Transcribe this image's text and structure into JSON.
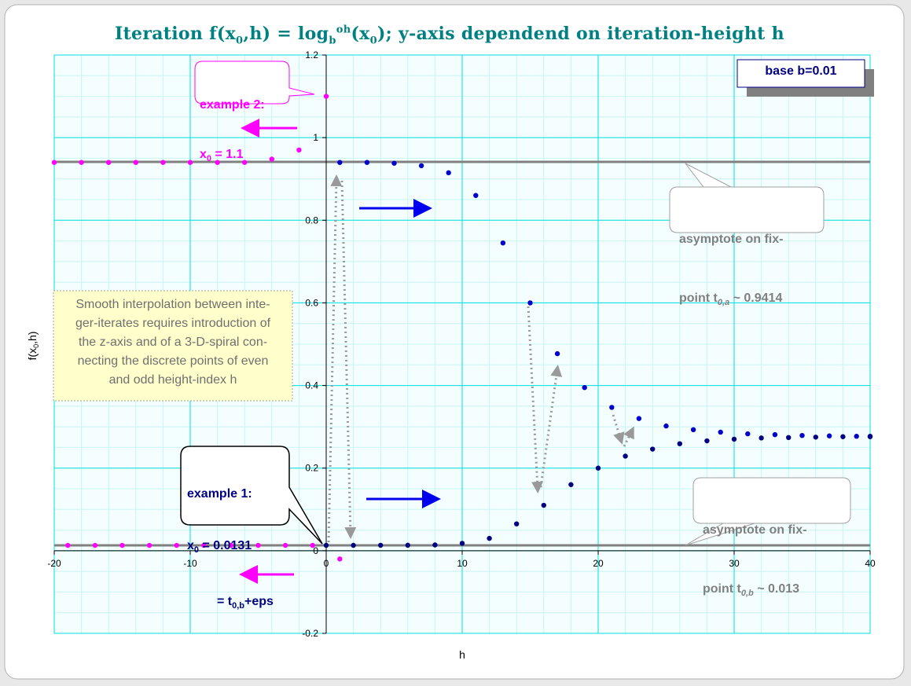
{
  "title": {
    "prefix": "Iteration  f(x",
    "sub0": "0",
    "mid": ",h) = log",
    "subb": "b",
    "sup": "oh",
    "mid2": "(x",
    "sub0b": "0",
    "suffix": "); y-axis dependend on iteration-height h"
  },
  "base_label": "base  b=0.01",
  "ylabel": "f(x0,h)",
  "xlabel": "h",
  "example2": {
    "line1": "example 2:",
    "line2_pre": "x",
    "line2_sub": "0",
    "line2_post": " = 1.1"
  },
  "example1": {
    "line1": "example 1:",
    "line2_pre": "x",
    "line2_sub": "0",
    "line2_post": " = 0.0131",
    "line3_pre": "= t",
    "line3_sub": "0,b",
    "line3_post": "+eps"
  },
  "asym_a": {
    "line1": "asymptote on fix-",
    "line2_pre": "point t",
    "line2_sub": "0,a",
    "line2_post": " ~ 0.9414"
  },
  "asym_b": {
    "line1": "asymptote on fix-",
    "line2_pre": "point t",
    "line2_sub": "0,b",
    "line2_post": " ~ 0.013"
  },
  "note": "Smooth interpolation between inte-\nger-iterates requires introduction of\nthe z-axis and of a 3-D-spiral con-\nnecting the discrete points of even\nand odd height-index h",
  "colors": {
    "magenta": "#ff00ff",
    "blue": "#0000cc",
    "navy": "#000080",
    "title": "#008080",
    "grid": "#00e0e0",
    "minorgrid": "#c8f4f4",
    "asymptote": "#808080",
    "plot_bg": "#f2fefe"
  },
  "chart_data": {
    "type": "scatter",
    "xlim": [
      -20,
      40
    ],
    "ylim": [
      -0.2,
      1.2
    ],
    "x_ticks": [
      -20,
      -10,
      0,
      10,
      20,
      30,
      40
    ],
    "y_ticks": [
      -0.2,
      0,
      0.2,
      0.4,
      0.6,
      0.8,
      1,
      1.2
    ],
    "asymptotes": [
      0.9414,
      0.013
    ],
    "series": [
      {
        "color": "#ff00ff",
        "points": [
          [
            -20,
            0.94
          ],
          [
            -18,
            0.94
          ],
          [
            -16,
            0.94
          ],
          [
            -14,
            0.94
          ],
          [
            -12,
            0.94
          ],
          [
            -10,
            0.94
          ],
          [
            -8,
            0.94
          ],
          [
            -6,
            0.94
          ],
          [
            -4,
            0.948
          ],
          [
            -2,
            0.97
          ],
          [
            0,
            1.1
          ],
          [
            1,
            -0.02
          ]
        ]
      },
      {
        "color": "#0000cc",
        "points": [
          [
            1,
            0.94
          ],
          [
            3,
            0.94
          ],
          [
            5,
            0.938
          ],
          [
            7,
            0.932
          ],
          [
            9,
            0.915
          ],
          [
            11,
            0.86
          ],
          [
            13,
            0.745
          ],
          [
            15,
            0.6
          ],
          [
            17,
            0.477
          ],
          [
            19,
            0.395
          ],
          [
            21,
            0.347
          ],
          [
            23,
            0.32
          ],
          [
            25,
            0.302
          ],
          [
            27,
            0.293
          ],
          [
            29,
            0.287
          ],
          [
            31,
            0.283
          ],
          [
            33,
            0.281
          ],
          [
            35,
            0.279
          ],
          [
            37,
            0.278
          ],
          [
            39,
            0.277
          ],
          [
            40,
            0.277
          ]
        ]
      },
      {
        "color": "#ff00ff",
        "points": [
          [
            -19,
            0.013
          ],
          [
            -17,
            0.013
          ],
          [
            -15,
            0.013
          ],
          [
            -13,
            0.013
          ],
          [
            -11,
            0.013
          ],
          [
            -9,
            0.013
          ],
          [
            -7,
            0.013
          ],
          [
            -5,
            0.013
          ],
          [
            -3,
            0.013
          ],
          [
            -1,
            0.013
          ]
        ]
      },
      {
        "color": "#000080",
        "points": [
          [
            0,
            0.0131
          ],
          [
            2,
            0.0131
          ],
          [
            4,
            0.0132
          ],
          [
            6,
            0.0133
          ],
          [
            8,
            0.014
          ],
          [
            10,
            0.018
          ],
          [
            12,
            0.03
          ],
          [
            14,
            0.065
          ],
          [
            16,
            0.11
          ],
          [
            18,
            0.16
          ],
          [
            20,
            0.2
          ],
          [
            22,
            0.229
          ],
          [
            24,
            0.246
          ],
          [
            26,
            0.259
          ],
          [
            28,
            0.266
          ],
          [
            30,
            0.27
          ],
          [
            32,
            0.273
          ],
          [
            34,
            0.274
          ],
          [
            36,
            0.275
          ],
          [
            38,
            0.276
          ],
          [
            40,
            0.276
          ]
        ]
      }
    ]
  }
}
